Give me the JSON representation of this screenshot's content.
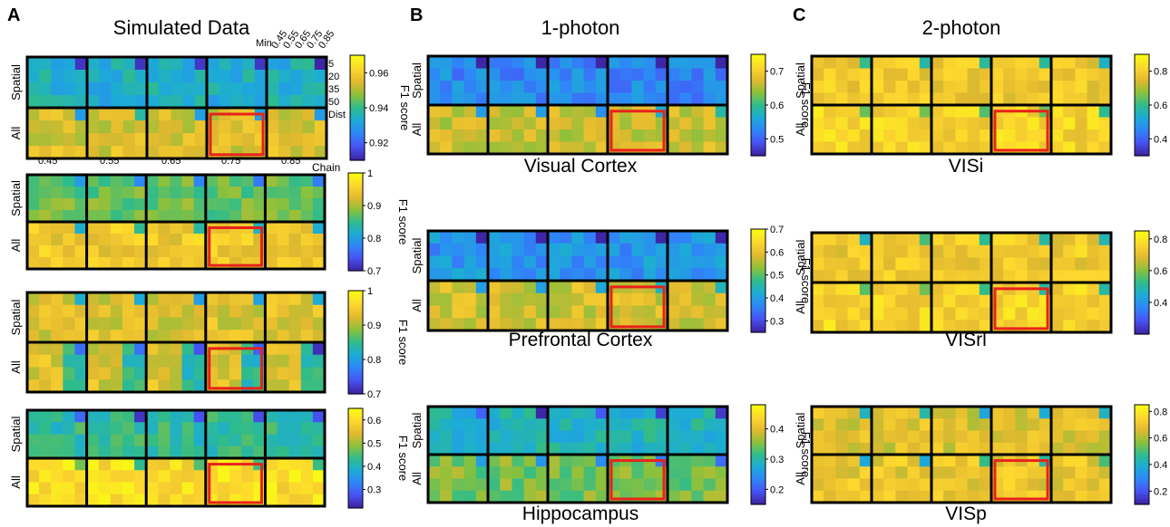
{
  "panels": {
    "A": {
      "letter": "A",
      "title": "Simulated Data",
      "min_label": "Min",
      "min_ticks": [
        "0.45",
        "0.55",
        "0.65",
        "0.75",
        "0.85"
      ],
      "dist_label": "Dist",
      "dist_ticks": [
        "5",
        "20",
        "35",
        "50"
      ],
      "chain_label": "Chain",
      "chain_ticks": [
        "0.45",
        "0.55",
        "0.65",
        "0.75",
        "0.85"
      ]
    },
    "B": {
      "letter": "B",
      "title": "1-photon"
    },
    "C": {
      "letter": "C",
      "title": "2-photon"
    }
  },
  "row_labels": {
    "spatial": "Spatial",
    "all": "All"
  },
  "colorbar_label": "F1 score",
  "colormap": [
    "#3e26a8",
    "#4755f6",
    "#2e87f7",
    "#1cacd6",
    "#2fbc8b",
    "#8cc13b",
    "#e1b92f",
    "#fdd62f",
    "#f9fb15"
  ],
  "highlight_color": "#e8221b",
  "chart_data": [
    {
      "type": "heatmap",
      "panel": "A",
      "ticks": [
        "0.96",
        "0.94",
        "0.92"
      ],
      "clim": [
        0.91,
        0.97
      ],
      "spatial_level": 0.4,
      "all_level": 0.75,
      "highlight_block": 3
    },
    {
      "type": "heatmap",
      "panel": "A",
      "ticks": [
        "1",
        "0.9",
        "0.8",
        "0.7"
      ],
      "clim": [
        0.7,
        1.0
      ],
      "spatial_level": 0.58,
      "all_level": 0.82,
      "highlight_block": 3
    },
    {
      "type": "heatmap",
      "panel": "A",
      "ticks": [
        "1",
        "0.9",
        "0.8",
        "0.7"
      ],
      "clim": [
        0.7,
        1.0
      ],
      "spatial_level": 0.76,
      "all_level": 0.76,
      "highlight_block": 3
    },
    {
      "type": "heatmap",
      "panel": "A",
      "ticks": [
        "0.6",
        "0.5",
        "0.4",
        "0.3"
      ],
      "clim": [
        0.22,
        0.65
      ],
      "spatial_level": 0.48,
      "all_level": 0.9,
      "highlight_block": 3
    },
    {
      "type": "heatmap",
      "panel": "B",
      "region": "Visual Cortex",
      "ticks": [
        "0.7",
        "0.6",
        "0.5"
      ],
      "clim": [
        0.45,
        0.75
      ],
      "spatial_level": 0.26,
      "all_level": 0.72,
      "highlight_block": 3
    },
    {
      "type": "heatmap",
      "panel": "B",
      "region": "Prefrontal Cortex",
      "ticks": [
        "0.7",
        "0.6",
        "0.5",
        "0.4",
        "0.3"
      ],
      "clim": [
        0.25,
        0.7
      ],
      "spatial_level": 0.3,
      "all_level": 0.74,
      "highlight_block": 3
    },
    {
      "type": "heatmap",
      "panel": "B",
      "region": "Hippocampus",
      "ticks": [
        "0.4",
        "0.3",
        "0.2"
      ],
      "clim": [
        0.15,
        0.48
      ],
      "spatial_level": 0.42,
      "all_level": 0.6,
      "highlight_block": 3
    },
    {
      "type": "heatmap",
      "panel": "C",
      "region": "VISi",
      "ticks": [
        "0.8",
        "0.6",
        "0.4"
      ],
      "clim": [
        0.3,
        0.9
      ],
      "spatial_level": 0.82,
      "all_level": 0.86,
      "highlight_block": 3
    },
    {
      "type": "heatmap",
      "panel": "C",
      "region": "VISrl",
      "ticks": [
        "0.8",
        "0.6",
        "0.4"
      ],
      "clim": [
        0.2,
        0.85
      ],
      "spatial_level": 0.82,
      "all_level": 0.86,
      "highlight_block": 3
    },
    {
      "type": "heatmap",
      "panel": "C",
      "region": "VISp",
      "ticks": [
        "0.8",
        "0.6",
        "0.4",
        "0.2"
      ],
      "clim": [
        0.1,
        0.85
      ],
      "spatial_level": 0.76,
      "all_level": 0.8,
      "highlight_block": 3
    }
  ]
}
